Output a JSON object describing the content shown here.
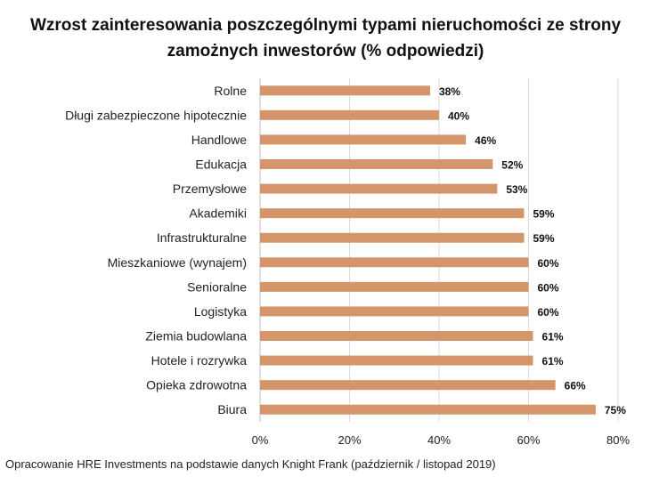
{
  "colors": {
    "bar": "#d4956b",
    "grid": "#d9d9d9",
    "axis": "#bfbfbf",
    "text": "#222222"
  },
  "chart_data": {
    "type": "bar",
    "orientation": "horizontal",
    "title_line1": "Wzrost zainteresowania poszczególnymi typami nieruchomości ze strony",
    "title_line2": "zamożnych inwestorów (% odpowiedzi)",
    "categories": [
      "Rolne",
      "Długi zabezpieczone hipotecznie",
      "Handlowe",
      "Edukacja",
      "Przemysłowe",
      "Akademiki",
      "Infrastrukturalne",
      "Mieszkaniowe (wynajem)",
      "Senioralne",
      "Logistyka",
      "Ziemia budowlana",
      "Hotele i rozrywka",
      "Opieka zdrowotna",
      "Biura"
    ],
    "values": [
      38,
      40,
      46,
      52,
      53,
      59,
      59,
      60,
      60,
      60,
      61,
      61,
      66,
      75
    ],
    "data_labels": [
      "38%",
      "40%",
      "46%",
      "52%",
      "53%",
      "59%",
      "59%",
      "60%",
      "60%",
      "60%",
      "61%",
      "61%",
      "66%",
      "75%"
    ],
    "x_ticks": [
      "0%",
      "20%",
      "40%",
      "60%",
      "80%"
    ],
    "xlim": [
      0,
      80
    ],
    "grid": true,
    "legend": "none"
  },
  "source": "Opracowanie HRE Investments na podstawie danych Knight Frank (październik / listopad 2019)"
}
